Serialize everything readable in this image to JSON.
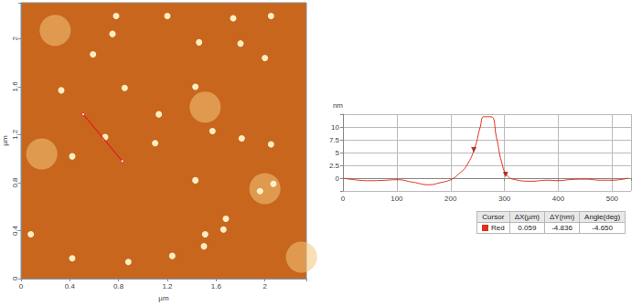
{
  "chart_data": [
    {
      "type": "scatter",
      "xlabel": "µm",
      "ylabel": "µm",
      "xlim": [
        0,
        2.34
      ],
      "xticks": [
        0,
        0.4,
        0.8,
        1.2,
        1.6,
        2
      ],
      "ylim": [
        0,
        2.3
      ],
      "yticks": [
        0,
        0.4,
        0.8,
        1.2,
        1.6,
        2
      ],
      "grid": false,
      "series": [
        {
          "type": "scatter",
          "marker": "blob",
          "color": "#f2c47a",
          "x": [
            0.28,
            1.51,
            0.17,
            2.0,
            2.3
          ],
          "y": [
            2.07,
            1.43,
            1.04,
            0.75,
            0.18
          ]
        },
        {
          "type": "scatter",
          "marker": "circle",
          "color": "#fff6cc",
          "x": [
            0.78,
            1.2,
            1.74,
            2.05,
            0.75,
            1.46,
            1.8,
            0.59,
            2.0,
            0.33,
            0.85,
            1.43,
            1.13,
            0.69,
            1.1,
            1.81,
            2.05,
            1.57,
            0.42,
            1.43,
            2.07,
            1.96,
            1.68,
            1.51,
            1.66,
            1.5,
            0.08,
            0.42,
            0.88,
            1.24
          ],
          "y": [
            2.19,
            2.19,
            2.17,
            2.19,
            2.04,
            1.97,
            1.96,
            1.87,
            1.84,
            1.57,
            1.59,
            1.6,
            1.37,
            1.18,
            1.13,
            1.17,
            1.12,
            1.23,
            1.02,
            0.82,
            0.79,
            0.73,
            0.5,
            0.37,
            0.41,
            0.27,
            0.37,
            0.17,
            0.14,
            0.19
          ]
        },
        {
          "type": "line",
          "color": "#e02020",
          "x": [
            0.51,
            0.83
          ],
          "y": [
            1.37,
            0.98
          ]
        }
      ]
    },
    {
      "type": "line",
      "ylabel": "nm",
      "color": "#e03020",
      "xlim": [
        0,
        535
      ],
      "xticks": [
        0,
        100,
        200,
        300,
        400,
        500
      ],
      "ylim": [
        -2.5,
        12.5
      ],
      "yticks": [
        0,
        2.5,
        5,
        7.5,
        10
      ],
      "grid": true,
      "x": [
        0,
        20,
        50,
        80,
        100,
        130,
        160,
        180,
        200,
        215,
        230,
        245,
        255,
        262,
        275,
        285,
        295,
        305,
        320,
        350,
        380,
        400,
        420,
        450,
        480,
        500,
        520,
        530
      ],
      "values": [
        0,
        -0.3,
        -0.5,
        -0.4,
        -0.3,
        -0.8,
        -1.3,
        -0.9,
        -0.3,
        0.8,
        2.5,
        6,
        10,
        12,
        12,
        8,
        3,
        0.5,
        -0.3,
        -0.6,
        -0.4,
        -0.5,
        -0.3,
        -0.2,
        -0.4,
        -0.4,
        -0.2,
        0
      ],
      "cursors": {
        "x": [
          243,
          302
        ],
        "y": [
          5.2,
          0.364
        ],
        "color": "#a01010",
        "marker": "triangle"
      },
      "table": {
        "header": [
          "Cursor",
          "ΔX(µm)",
          "ΔY(nm)",
          "Angle(deg)"
        ],
        "rows": [
          [
            "Red",
            "0.059",
            "-4.836",
            "-4.650"
          ]
        ]
      }
    }
  ]
}
